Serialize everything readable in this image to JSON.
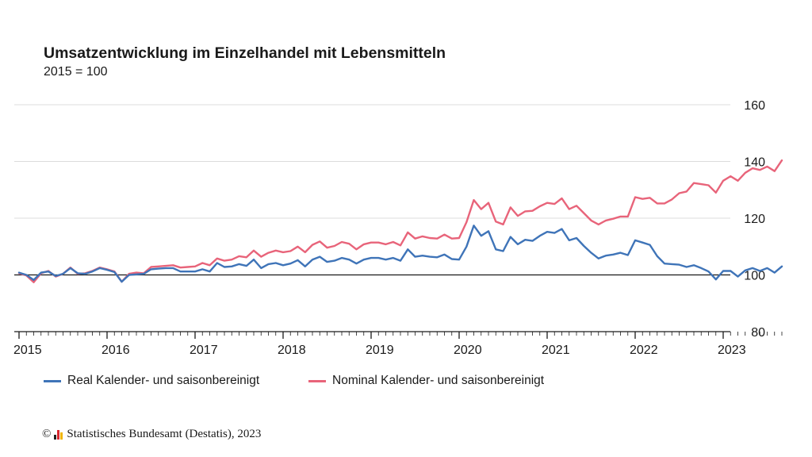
{
  "title": "Umsatzentwicklung im Einzelhandel mit Lebensmitteln",
  "subtitle": "2015 = 100",
  "footer": {
    "copyright_symbol": "©",
    "text": "Statistisches Bundesamt (Destatis), 2023"
  },
  "chart_data": {
    "type": "line",
    "title": "Umsatzentwicklung im Einzelhandel mit Lebensmitteln",
    "subtitle": "2015 = 100",
    "x_unit": "month",
    "start": "2015-01",
    "end": "2023-09",
    "x_ticks": [
      "2015",
      "2016",
      "2017",
      "2018",
      "2019",
      "2020",
      "2021",
      "2022",
      "2023"
    ],
    "y_ticks": [
      80,
      100,
      120,
      140,
      160
    ],
    "ylim": [
      80,
      160
    ],
    "y_axis_side": "right",
    "grid": "horizontal",
    "baseline": 100,
    "legend_position": "bottom-left",
    "series": [
      {
        "name": "Real Kalender- und saisonbereinigt",
        "color": "#3f74b8",
        "values": [
          100.8,
          100.0,
          98.2,
          100.8,
          101.2,
          99.6,
          100.4,
          102.4,
          100.6,
          100.4,
          101.2,
          102.4,
          101.8,
          101.0,
          97.6,
          100.0,
          100.2,
          100.4,
          102.0,
          102.2,
          102.4,
          102.4,
          101.2,
          101.2,
          101.2,
          102.0,
          101.2,
          104.2,
          102.8,
          103.0,
          103.8,
          103.2,
          105.4,
          102.4,
          103.8,
          104.2,
          103.4,
          104.0,
          105.2,
          103.0,
          105.4,
          106.4,
          104.6,
          105.0,
          106.0,
          105.4,
          104.0,
          105.4,
          106.0,
          106.0,
          105.4,
          106.0,
          105.0,
          109.0,
          106.4,
          106.8,
          106.4,
          106.2,
          107.2,
          105.6,
          105.4,
          110.0,
          117.4,
          113.8,
          115.4,
          109.0,
          108.4,
          113.4,
          110.8,
          112.4,
          112.0,
          113.8,
          115.2,
          114.8,
          116.2,
          112.2,
          113.0,
          110.2,
          107.8,
          105.8,
          106.8,
          107.2,
          107.8,
          107.0,
          112.2,
          111.4,
          110.6,
          106.6,
          104.0,
          103.8,
          103.6,
          102.8,
          103.4,
          102.4,
          101.2,
          98.4,
          101.4,
          101.4,
          99.4,
          101.6,
          102.4,
          101.4,
          102.4,
          100.8,
          103.0
        ]
      },
      {
        "name": "Nominal Kalender- und saisonbereinigt",
        "color": "#e8647a",
        "values": [
          100.6,
          99.8,
          97.4,
          100.6,
          101.4,
          99.4,
          100.4,
          102.6,
          100.4,
          100.6,
          101.4,
          102.6,
          102.0,
          101.2,
          97.6,
          100.4,
          100.8,
          100.6,
          102.8,
          103.0,
          103.2,
          103.4,
          102.6,
          102.8,
          103.0,
          104.2,
          103.4,
          105.8,
          105.0,
          105.4,
          106.6,
          106.2,
          108.6,
          106.4,
          107.8,
          108.6,
          108.0,
          108.4,
          110.0,
          108.0,
          110.6,
          111.8,
          109.6,
          110.2,
          111.6,
          111.0,
          109.0,
          110.8,
          111.4,
          111.4,
          110.8,
          111.6,
          110.4,
          115.0,
          112.8,
          113.6,
          113.0,
          112.8,
          114.2,
          112.8,
          113.0,
          118.6,
          126.4,
          123.2,
          125.4,
          118.8,
          117.8,
          123.8,
          120.8,
          122.4,
          122.6,
          124.2,
          125.4,
          125.0,
          127.0,
          123.2,
          124.4,
          121.8,
          119.2,
          117.8,
          119.2,
          119.8,
          120.6,
          120.6,
          127.4,
          126.8,
          127.2,
          125.2,
          125.2,
          126.6,
          128.8,
          129.4,
          132.4,
          132.0,
          131.6,
          129.0,
          133.2,
          134.8,
          133.2,
          136.0,
          137.6,
          137.0,
          138.2,
          136.6,
          140.4
        ]
      }
    ]
  }
}
